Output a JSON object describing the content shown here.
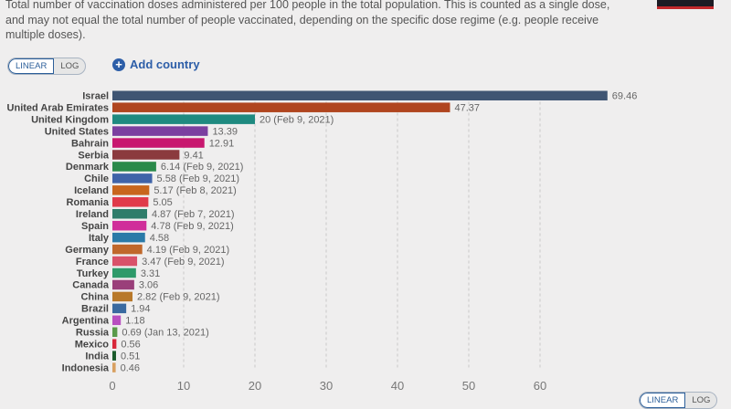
{
  "description": "Total number of vaccination doses administered per 100 people in the total population. This is counted as a single dose, and may not equal the total number of people vaccinated, depending on the specific dose regime (e.g. people receive multiple doses).",
  "controls": {
    "linear": "LINEAR",
    "log": "LOG",
    "add_country": "Add country",
    "add_icon": "+"
  },
  "chart_data": {
    "type": "bar",
    "orientation": "horizontal",
    "xlim": [
      0,
      70
    ],
    "xticks": [
      "0",
      "10",
      "20",
      "30",
      "40",
      "50",
      "60"
    ],
    "grid": true,
    "categories": [
      "Israel",
      "United Arab Emirates",
      "United Kingdom",
      "United States",
      "Bahrain",
      "Serbia",
      "Denmark",
      "Chile",
      "Iceland",
      "Romania",
      "Ireland",
      "Spain",
      "Italy",
      "Germany",
      "France",
      "Turkey",
      "Canada",
      "China",
      "Brazil",
      "Argentina",
      "Russia",
      "Mexico",
      "India",
      "Indonesia"
    ],
    "values": [
      69.46,
      47.37,
      20,
      13.39,
      12.91,
      9.41,
      6.14,
      5.58,
      5.17,
      5.05,
      4.87,
      4.78,
      4.58,
      4.19,
      3.47,
      3.31,
      3.06,
      2.82,
      1.94,
      1.18,
      0.69,
      0.56,
      0.51,
      0.46
    ],
    "value_labels": [
      "69.46",
      "47.37",
      "20 (Feb 9, 2021)",
      "13.39",
      "12.91",
      "9.41",
      "6.14 (Feb 9, 2021)",
      "5.58 (Feb 9, 2021)",
      "5.17 (Feb 8, 2021)",
      "5.05",
      "4.87 (Feb 7, 2021)",
      "4.78 (Feb 9, 2021)",
      "4.58",
      "4.19 (Feb 9, 2021)",
      "3.47 (Feb 9, 2021)",
      "3.31",
      "3.06",
      "2.82 (Feb 9, 2021)",
      "1.94",
      "1.18",
      "0.69 (Jan 13, 2021)",
      "0.56",
      "0.51",
      "0.46"
    ],
    "colors": [
      "#3f5573",
      "#b0451f",
      "#1f8a80",
      "#7b3fa0",
      "#c8186f",
      "#8b3a3e",
      "#2a8a4a",
      "#3f63a8",
      "#c8661d",
      "#e03a4a",
      "#2e7d6a",
      "#d02e9a",
      "#2a7aa8",
      "#c0682b",
      "#d9526a",
      "#2e9a6a",
      "#9a3f7a",
      "#b8782a",
      "#3a6aa0",
      "#b84fc0",
      "#5a9a4a",
      "#d8283a",
      "#1a5a2a",
      "#d8a060"
    ]
  }
}
